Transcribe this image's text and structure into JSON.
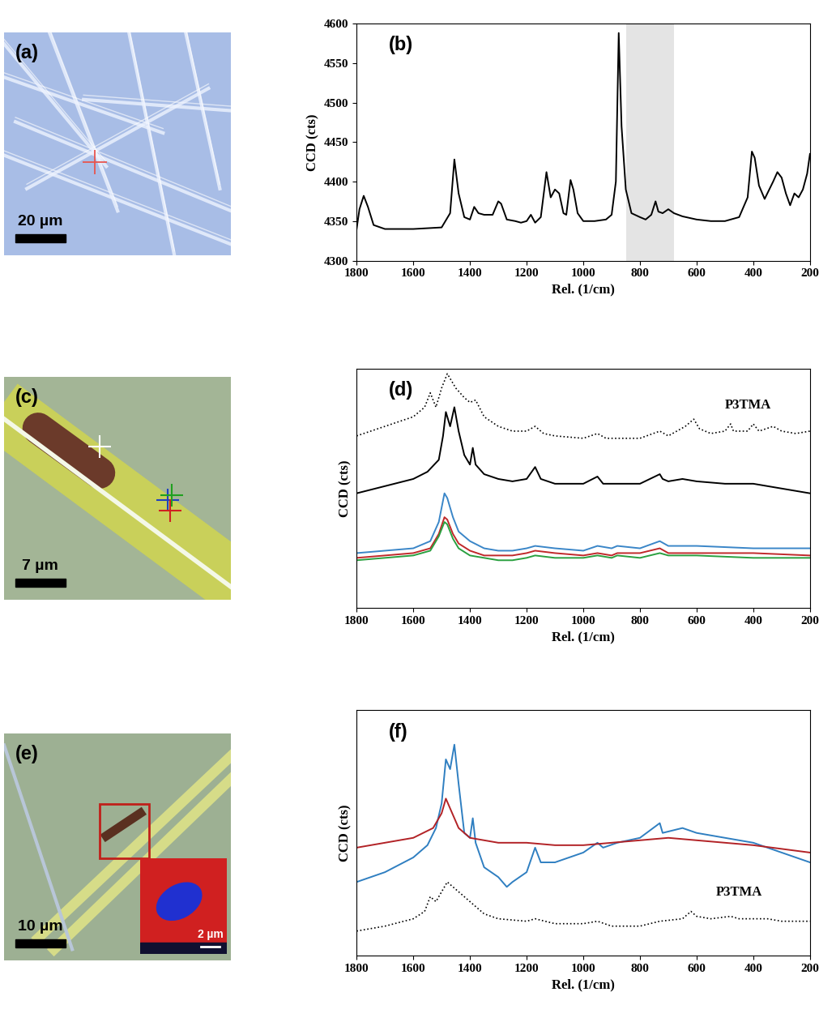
{
  "chart_data": [
    {
      "type": "line",
      "title": "(b)",
      "x_label": "Rel. (1/cm)",
      "y_label": "CCD (cts)",
      "xlim": [
        1800,
        200
      ],
      "ylim": [
        4300,
        4600
      ],
      "xticks": [
        1800,
        1600,
        1400,
        1200,
        1000,
        800,
        600,
        400,
        200
      ],
      "yticks": [
        4300,
        4350,
        4400,
        4450,
        4500,
        4550,
        4600
      ],
      "shaded_range": [
        850,
        680
      ],
      "series": [
        {
          "color": "#000000",
          "line_style": "solid",
          "x": [
            1800,
            1790,
            1775,
            1760,
            1740,
            1700,
            1600,
            1500,
            1470,
            1455,
            1440,
            1420,
            1400,
            1385,
            1370,
            1350,
            1320,
            1300,
            1290,
            1270,
            1240,
            1220,
            1200,
            1185,
            1170,
            1150,
            1130,
            1115,
            1100,
            1085,
            1070,
            1060,
            1045,
            1035,
            1020,
            1000,
            960,
            920,
            900,
            885,
            875,
            865,
            850,
            830,
            800,
            780,
            760,
            745,
            735,
            720,
            700,
            680,
            650,
            600,
            550,
            500,
            450,
            420,
            405,
            395,
            380,
            360,
            330,
            315,
            300,
            285,
            270,
            255,
            240,
            225,
            210,
            200
          ],
          "values": [
            4340,
            4365,
            4382,
            4368,
            4345,
            4340,
            4340,
            4342,
            4360,
            4428,
            4385,
            4355,
            4352,
            4368,
            4360,
            4358,
            4358,
            4375,
            4372,
            4352,
            4350,
            4348,
            4350,
            4358,
            4348,
            4355,
            4412,
            4380,
            4390,
            4385,
            4360,
            4358,
            4402,
            4390,
            4360,
            4350,
            4350,
            4352,
            4358,
            4400,
            4588,
            4470,
            4390,
            4360,
            4355,
            4352,
            4358,
            4375,
            4362,
            4360,
            4365,
            4360,
            4356,
            4352,
            4350,
            4350,
            4355,
            4380,
            4438,
            4430,
            4395,
            4378,
            4400,
            4412,
            4405,
            4385,
            4370,
            4385,
            4380,
            4390,
            4410,
            4435
          ]
        }
      ]
    },
    {
      "type": "line",
      "title": "(d)",
      "x_label": "Rel. (1/cm)",
      "y_label": "CCD (cts)",
      "xlim": [
        1800,
        200
      ],
      "ylim": [
        0,
        100
      ],
      "xticks": [
        1800,
        1600,
        1400,
        1200,
        1000,
        800,
        600,
        400,
        200
      ],
      "yticks": [],
      "tick_labels": "x",
      "series": [
        {
          "name": "P3TMA",
          "color": "#000000",
          "line_style": "dotted",
          "x": [
            1800,
            1700,
            1600,
            1560,
            1540,
            1520,
            1500,
            1480,
            1470,
            1450,
            1420,
            1400,
            1380,
            1350,
            1300,
            1250,
            1200,
            1170,
            1140,
            1100,
            1000,
            950,
            920,
            800,
            730,
            700,
            640,
            610,
            590,
            550,
            500,
            480,
            470,
            420,
            400,
            380,
            330,
            300,
            250,
            200
          ],
          "values": [
            72,
            76,
            80,
            84,
            90,
            84,
            92,
            98,
            96,
            92,
            88,
            86,
            87,
            80,
            76,
            74,
            74,
            76,
            73,
            72,
            71,
            73,
            71,
            71,
            74,
            72,
            76,
            79,
            75,
            73,
            74,
            77,
            74,
            74,
            77,
            74,
            76,
            74,
            73,
            74
          ]
        },
        {
          "color": "#000000",
          "line_style": "solid",
          "x": [
            1800,
            1700,
            1600,
            1550,
            1510,
            1495,
            1485,
            1470,
            1455,
            1440,
            1420,
            1400,
            1390,
            1380,
            1350,
            1300,
            1250,
            1200,
            1170,
            1150,
            1100,
            1000,
            950,
            930,
            800,
            730,
            720,
            700,
            650,
            600,
            500,
            400,
            300,
            200
          ],
          "values": [
            48,
            51,
            54,
            57,
            62,
            72,
            82,
            76,
            84,
            74,
            64,
            60,
            67,
            60,
            56,
            54,
            53,
            54,
            59,
            54,
            52,
            52,
            55,
            52,
            52,
            56,
            54,
            53,
            54,
            53,
            52,
            52,
            50,
            48
          ]
        },
        {
          "color": "#3a86c8",
          "line_style": "solid",
          "x": [
            1800,
            1700,
            1600,
            1540,
            1510,
            1490,
            1480,
            1460,
            1440,
            1400,
            1350,
            1300,
            1250,
            1200,
            1170,
            1100,
            1000,
            950,
            900,
            880,
            800,
            730,
            700,
            600,
            400,
            200
          ],
          "values": [
            23,
            24,
            25,
            28,
            36,
            48,
            46,
            38,
            32,
            28,
            25,
            24,
            24,
            25,
            26,
            25,
            24,
            26,
            25,
            26,
            25,
            28,
            26,
            26,
            25,
            25
          ]
        },
        {
          "color": "#c0282a",
          "line_style": "solid",
          "x": [
            1800,
            1700,
            1600,
            1540,
            1510,
            1490,
            1480,
            1460,
            1440,
            1400,
            1350,
            1300,
            1250,
            1200,
            1170,
            1100,
            1000,
            950,
            900,
            880,
            800,
            730,
            700,
            600,
            400,
            200
          ],
          "values": [
            21,
            22,
            23,
            25,
            31,
            38,
            37,
            31,
            27,
            24,
            22,
            22,
            22,
            23,
            24,
            23,
            22,
            23,
            22,
            23,
            23,
            25,
            23,
            23,
            23,
            22
          ]
        },
        {
          "color": "#2aa040",
          "line_style": "solid",
          "x": [
            1800,
            1700,
            1600,
            1540,
            1510,
            1490,
            1480,
            1460,
            1440,
            1400,
            1350,
            1300,
            1250,
            1200,
            1170,
            1100,
            1000,
            950,
            900,
            880,
            800,
            730,
            700,
            600,
            400,
            200
          ],
          "values": [
            20,
            21,
            22,
            24,
            30,
            36,
            35,
            29,
            25,
            22,
            21,
            20,
            20,
            21,
            22,
            21,
            21,
            22,
            21,
            22,
            21,
            23,
            22,
            22,
            21,
            21
          ]
        }
      ]
    },
    {
      "type": "line",
      "title": "(f)",
      "x_label": "Rel. (1/cm)",
      "y_label": "CCD (cts)",
      "xlim": [
        1800,
        200
      ],
      "ylim": [
        0,
        100
      ],
      "xticks": [
        1800,
        1600,
        1400,
        1200,
        1000,
        800,
        600,
        400,
        200
      ],
      "yticks": [],
      "tick_labels": "x",
      "series": [
        {
          "color": "#2f7fc1",
          "line_style": "solid",
          "x": [
            1800,
            1700,
            1600,
            1550,
            1520,
            1500,
            1485,
            1470,
            1455,
            1440,
            1420,
            1400,
            1390,
            1380,
            1350,
            1300,
            1270,
            1250,
            1200,
            1170,
            1150,
            1100,
            1050,
            1000,
            950,
            930,
            880,
            800,
            730,
            720,
            650,
            600,
            500,
            400,
            300,
            200
          ],
          "values": [
            30,
            34,
            40,
            45,
            52,
            62,
            80,
            76,
            86,
            70,
            50,
            48,
            56,
            46,
            36,
            32,
            28,
            30,
            34,
            44,
            38,
            38,
            40,
            42,
            46,
            44,
            46,
            48,
            54,
            50,
            52,
            50,
            48,
            46,
            42,
            38
          ]
        },
        {
          "color": "#b22226",
          "line_style": "solid",
          "x": [
            1800,
            1700,
            1600,
            1530,
            1500,
            1485,
            1470,
            1440,
            1400,
            1300,
            1200,
            1100,
            1000,
            900,
            800,
            700,
            600,
            400,
            200
          ],
          "values": [
            44,
            46,
            48,
            52,
            58,
            64,
            60,
            52,
            48,
            46,
            46,
            45,
            45,
            46,
            47,
            48,
            47,
            45,
            42
          ]
        },
        {
          "name": "P3TMA",
          "color": "#000000",
          "line_style": "dotted",
          "x": [
            1800,
            1700,
            1600,
            1560,
            1540,
            1520,
            1500,
            1480,
            1460,
            1440,
            1400,
            1350,
            1300,
            1200,
            1170,
            1100,
            1000,
            950,
            900,
            800,
            730,
            650,
            620,
            600,
            550,
            480,
            450,
            400,
            350,
            300,
            200
          ],
          "values": [
            10,
            12,
            15,
            18,
            24,
            22,
            26,
            30,
            28,
            26,
            22,
            17,
            15,
            14,
            15,
            13,
            13,
            14,
            12,
            12,
            14,
            15,
            18,
            16,
            15,
            16,
            15,
            15,
            15,
            14,
            14
          ]
        }
      ]
    }
  ],
  "images": [
    {
      "label": "(a)",
      "scale_bar": "20 µm",
      "cross_colors": [
        "#e8554e"
      ]
    },
    {
      "label": "(c)",
      "scale_bar": "7 µm",
      "cross_colors": [
        "#ffffff",
        "#2040c0",
        "#20a020",
        "#d02020"
      ]
    },
    {
      "label": "(e)",
      "scale_bar": "10 µm",
      "box_color": "#c0201a",
      "inset_scale_bar": "2 µm"
    }
  ]
}
